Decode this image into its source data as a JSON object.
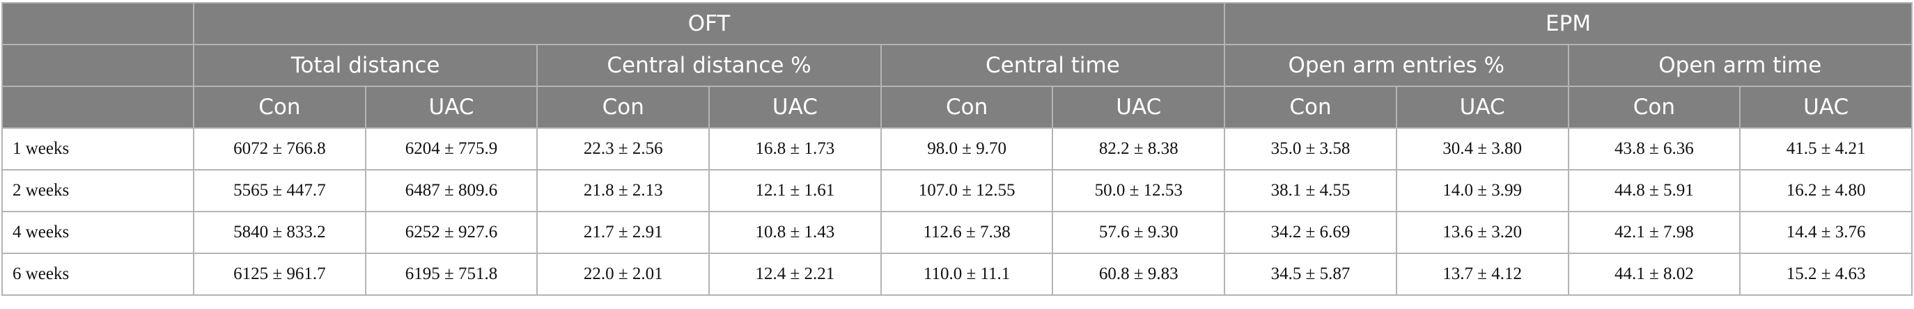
{
  "header": {
    "groups": [
      "OFT",
      "EPM"
    ],
    "measures": [
      "Total distance",
      "Central distance %",
      "Central time",
      "Open arm entries %",
      "Open arm time"
    ],
    "subgroups": [
      "Con",
      "UAC",
      "Con",
      "UAC",
      "Con",
      "UAC",
      "Con",
      "UAC",
      "Con",
      "UAC"
    ]
  },
  "rows": [
    {
      "label": "1 weeks",
      "cells": [
        "6072 ± 766.8",
        "6204 ± 775.9",
        "22.3 ± 2.56",
        "16.8 ± 1.73",
        "98.0 ± 9.70",
        "82.2 ± 8.38",
        "35.0 ± 3.58",
        "30.4 ± 3.80",
        "43.8 ± 6.36",
        "41.5 ± 4.21"
      ]
    },
    {
      "label": "2 weeks",
      "cells": [
        "5565 ± 447.7",
        "6487 ± 809.6",
        "21.8 ± 2.13",
        "12.1 ± 1.61",
        "107.0 ± 12.55",
        "50.0 ± 12.53",
        "38.1 ± 4.55",
        "14.0 ± 3.99",
        "44.8 ± 5.91",
        "16.2 ± 4.80"
      ]
    },
    {
      "label": "4 weeks",
      "cells": [
        "5840 ± 833.2",
        "6252 ± 927.6",
        "21.7 ± 2.91",
        "10.8 ± 1.43",
        "112.6 ± 7.38",
        "57.6 ± 9.30",
        "34.2 ± 6.69",
        "13.6 ± 3.20",
        "42.1 ± 7.98",
        "14.4 ± 3.76"
      ]
    },
    {
      "label": "6 weeks",
      "cells": [
        "6125 ± 961.7",
        "6195 ± 751.8",
        "22.0 ± 2.01",
        "12.4 ± 2.21",
        "110.0 ± 11.1",
        "60.8 ± 9.83",
        "34.5 ± 5.87",
        "13.7 ± 4.12",
        "44.1 ± 8.02",
        "15.2 ± 4.63"
      ]
    }
  ]
}
